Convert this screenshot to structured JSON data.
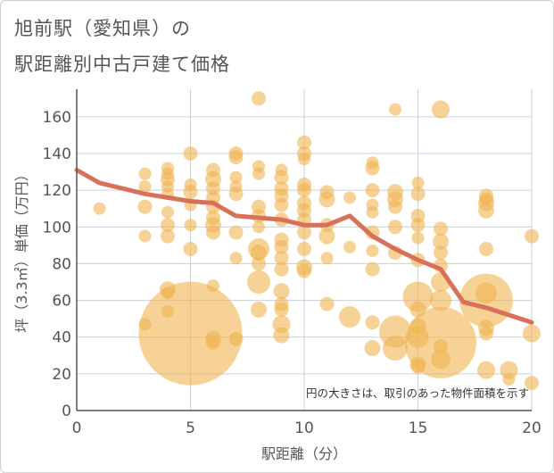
{
  "title": {
    "line1": "旭前駅（愛知県）の",
    "line2": "駅距離別中古戸建て価格"
  },
  "chart_data": {
    "type": "scatter",
    "xlabel": "駅距離（分）",
    "ylabel": "坪（3.3㎡）単価（万円）",
    "xlim": [
      0,
      20
    ],
    "ylim": [
      0,
      175
    ],
    "xticks": [
      0,
      5,
      10,
      15,
      20
    ],
    "yticks": [
      0,
      20,
      40,
      60,
      80,
      100,
      120,
      140,
      160
    ],
    "grid": true,
    "annotation": "円の大きさは、取引のあった物件面積を示す",
    "colors": {
      "bubble": "#f0b452",
      "trend": "#d9705a",
      "axis": "#555555",
      "grid": "#c9d1dc"
    },
    "trend_line": {
      "x": [
        0,
        1,
        2,
        3,
        4,
        5,
        6,
        7,
        8,
        9,
        10,
        11,
        12,
        13,
        14,
        15,
        16,
        17,
        18,
        19,
        20
      ],
      "y": [
        131,
        124,
        121,
        118,
        116,
        114,
        113,
        106,
        105,
        104,
        101,
        101,
        106,
        95,
        88,
        82,
        77,
        59,
        56,
        52,
        48
      ]
    },
    "points": [
      {
        "x": 1,
        "y": 110,
        "s": 7
      },
      {
        "x": 3,
        "y": 129,
        "s": 7
      },
      {
        "x": 3,
        "y": 122,
        "s": 7
      },
      {
        "x": 3,
        "y": 111,
        "s": 8
      },
      {
        "x": 3,
        "y": 95,
        "s": 7
      },
      {
        "x": 3,
        "y": 47,
        "s": 7
      },
      {
        "x": 4,
        "y": 132,
        "s": 7
      },
      {
        "x": 4,
        "y": 129,
        "s": 7
      },
      {
        "x": 4,
        "y": 126,
        "s": 8
      },
      {
        "x": 4,
        "y": 122,
        "s": 7
      },
      {
        "x": 4,
        "y": 118,
        "s": 7
      },
      {
        "x": 4,
        "y": 108,
        "s": 7
      },
      {
        "x": 4,
        "y": 101,
        "s": 8
      },
      {
        "x": 4,
        "y": 95,
        "s": 8
      },
      {
        "x": 4,
        "y": 66,
        "s": 9
      },
      {
        "x": 4,
        "y": 64,
        "s": 7
      },
      {
        "x": 4,
        "y": 54,
        "s": 7
      },
      {
        "x": 5,
        "y": 140,
        "s": 8
      },
      {
        "x": 5,
        "y": 123,
        "s": 7
      },
      {
        "x": 5,
        "y": 119,
        "s": 8
      },
      {
        "x": 5,
        "y": 112,
        "s": 7
      },
      {
        "x": 5,
        "y": 101,
        "s": 7
      },
      {
        "x": 5,
        "y": 88,
        "s": 8
      },
      {
        "x": 5,
        "y": 42,
        "s": 58
      },
      {
        "x": 6,
        "y": 131,
        "s": 8
      },
      {
        "x": 6,
        "y": 126,
        "s": 9
      },
      {
        "x": 6,
        "y": 121,
        "s": 8
      },
      {
        "x": 6,
        "y": 116,
        "s": 8
      },
      {
        "x": 6,
        "y": 111,
        "s": 8
      },
      {
        "x": 6,
        "y": 105,
        "s": 8
      },
      {
        "x": 6,
        "y": 101,
        "s": 9
      },
      {
        "x": 6,
        "y": 97,
        "s": 8
      },
      {
        "x": 6,
        "y": 68,
        "s": 7
      },
      {
        "x": 6,
        "y": 39,
        "s": 9
      },
      {
        "x": 6,
        "y": 37,
        "s": 8
      },
      {
        "x": 7,
        "y": 140,
        "s": 8
      },
      {
        "x": 7,
        "y": 138,
        "s": 8
      },
      {
        "x": 7,
        "y": 127,
        "s": 7
      },
      {
        "x": 7,
        "y": 122,
        "s": 7
      },
      {
        "x": 7,
        "y": 118,
        "s": 8
      },
      {
        "x": 7,
        "y": 97,
        "s": 8
      },
      {
        "x": 7,
        "y": 83,
        "s": 7
      },
      {
        "x": 7,
        "y": 39,
        "s": 8
      },
      {
        "x": 8,
        "y": 170,
        "s": 8
      },
      {
        "x": 8,
        "y": 133,
        "s": 7
      },
      {
        "x": 8,
        "y": 129,
        "s": 7
      },
      {
        "x": 8,
        "y": 111,
        "s": 8
      },
      {
        "x": 8,
        "y": 106,
        "s": 8
      },
      {
        "x": 8,
        "y": 100,
        "s": 7
      },
      {
        "x": 8,
        "y": 88,
        "s": 12
      },
      {
        "x": 8,
        "y": 86,
        "s": 9
      },
      {
        "x": 8,
        "y": 80,
        "s": 8
      },
      {
        "x": 8,
        "y": 70,
        "s": 13
      },
      {
        "x": 8,
        "y": 55,
        "s": 9
      },
      {
        "x": 9,
        "y": 131,
        "s": 7
      },
      {
        "x": 9,
        "y": 127,
        "s": 8
      },
      {
        "x": 9,
        "y": 121,
        "s": 8
      },
      {
        "x": 9,
        "y": 117,
        "s": 8
      },
      {
        "x": 9,
        "y": 112,
        "s": 8
      },
      {
        "x": 9,
        "y": 104,
        "s": 8
      },
      {
        "x": 9,
        "y": 93,
        "s": 8
      },
      {
        "x": 9,
        "y": 89,
        "s": 8
      },
      {
        "x": 9,
        "y": 83,
        "s": 8
      },
      {
        "x": 9,
        "y": 77,
        "s": 8
      },
      {
        "x": 9,
        "y": 65,
        "s": 9
      },
      {
        "x": 9,
        "y": 58,
        "s": 8
      },
      {
        "x": 9,
        "y": 55,
        "s": 8
      },
      {
        "x": 9,
        "y": 47,
        "s": 10
      },
      {
        "x": 9,
        "y": 41,
        "s": 9
      },
      {
        "x": 10,
        "y": 146,
        "s": 8
      },
      {
        "x": 10,
        "y": 140,
        "s": 8
      },
      {
        "x": 10,
        "y": 137,
        "s": 7
      },
      {
        "x": 10,
        "y": 123,
        "s": 8
      },
      {
        "x": 10,
        "y": 120,
        "s": 8
      },
      {
        "x": 10,
        "y": 113,
        "s": 8
      },
      {
        "x": 10,
        "y": 109,
        "s": 8
      },
      {
        "x": 10,
        "y": 104,
        "s": 8
      },
      {
        "x": 10,
        "y": 97,
        "s": 8
      },
      {
        "x": 10,
        "y": 88,
        "s": 8
      },
      {
        "x": 10,
        "y": 78,
        "s": 9
      },
      {
        "x": 10,
        "y": 76,
        "s": 8
      },
      {
        "x": 11,
        "y": 119,
        "s": 8
      },
      {
        "x": 11,
        "y": 115,
        "s": 9
      },
      {
        "x": 11,
        "y": 101,
        "s": 8
      },
      {
        "x": 11,
        "y": 95,
        "s": 9
      },
      {
        "x": 11,
        "y": 83,
        "s": 7
      },
      {
        "x": 11,
        "y": 58,
        "s": 8
      },
      {
        "x": 12,
        "y": 116,
        "s": 7
      },
      {
        "x": 12,
        "y": 89,
        "s": 7
      },
      {
        "x": 12,
        "y": 51,
        "s": 12
      },
      {
        "x": 13,
        "y": 135,
        "s": 7
      },
      {
        "x": 13,
        "y": 132,
        "s": 8
      },
      {
        "x": 13,
        "y": 120,
        "s": 8
      },
      {
        "x": 13,
        "y": 112,
        "s": 7
      },
      {
        "x": 13,
        "y": 108,
        "s": 7
      },
      {
        "x": 13,
        "y": 97,
        "s": 8
      },
      {
        "x": 13,
        "y": 87,
        "s": 7
      },
      {
        "x": 13,
        "y": 77,
        "s": 8
      },
      {
        "x": 13,
        "y": 48,
        "s": 8
      },
      {
        "x": 13,
        "y": 34,
        "s": 9
      },
      {
        "x": 14,
        "y": 164,
        "s": 7
      },
      {
        "x": 14,
        "y": 119,
        "s": 9
      },
      {
        "x": 14,
        "y": 115,
        "s": 9
      },
      {
        "x": 14,
        "y": 111,
        "s": 8
      },
      {
        "x": 14,
        "y": 100,
        "s": 8
      },
      {
        "x": 14,
        "y": 86,
        "s": 8
      },
      {
        "x": 14,
        "y": 43,
        "s": 18
      },
      {
        "x": 14,
        "y": 34,
        "s": 14
      },
      {
        "x": 15,
        "y": 124,
        "s": 7
      },
      {
        "x": 15,
        "y": 118,
        "s": 8
      },
      {
        "x": 15,
        "y": 106,
        "s": 8
      },
      {
        "x": 15,
        "y": 101,
        "s": 8
      },
      {
        "x": 15,
        "y": 94,
        "s": 7
      },
      {
        "x": 15,
        "y": 82,
        "s": 8
      },
      {
        "x": 15,
        "y": 62,
        "s": 17
      },
      {
        "x": 15,
        "y": 55,
        "s": 9
      },
      {
        "x": 15,
        "y": 46,
        "s": 9
      },
      {
        "x": 15,
        "y": 40,
        "s": 12
      },
      {
        "x": 15,
        "y": 25,
        "s": 9
      },
      {
        "x": 15,
        "y": 24,
        "s": 8
      },
      {
        "x": 16,
        "y": 164,
        "s": 10
      },
      {
        "x": 16,
        "y": 99,
        "s": 8
      },
      {
        "x": 16,
        "y": 92,
        "s": 9
      },
      {
        "x": 16,
        "y": 86,
        "s": 8
      },
      {
        "x": 16,
        "y": 79,
        "s": 8
      },
      {
        "x": 16,
        "y": 70,
        "s": 11
      },
      {
        "x": 16,
        "y": 60,
        "s": 12
      },
      {
        "x": 16,
        "y": 37,
        "s": 40
      },
      {
        "x": 16,
        "y": 35,
        "s": 8
      },
      {
        "x": 16,
        "y": 28,
        "s": 11
      },
      {
        "x": 18,
        "y": 117,
        "s": 8
      },
      {
        "x": 18,
        "y": 115,
        "s": 8
      },
      {
        "x": 18,
        "y": 113,
        "s": 9
      },
      {
        "x": 18,
        "y": 109,
        "s": 9
      },
      {
        "x": 18,
        "y": 88,
        "s": 8
      },
      {
        "x": 18,
        "y": 64,
        "s": 12
      },
      {
        "x": 18,
        "y": 60,
        "s": 30
      },
      {
        "x": 18,
        "y": 45,
        "s": 9
      },
      {
        "x": 18,
        "y": 42,
        "s": 8
      },
      {
        "x": 18,
        "y": 22,
        "s": 10
      },
      {
        "x": 19,
        "y": 22,
        "s": 10
      },
      {
        "x": 19,
        "y": 17,
        "s": 7
      },
      {
        "x": 20,
        "y": 95,
        "s": 8
      },
      {
        "x": 20,
        "y": 42,
        "s": 10
      },
      {
        "x": 20,
        "y": 15,
        "s": 8
      }
    ]
  }
}
